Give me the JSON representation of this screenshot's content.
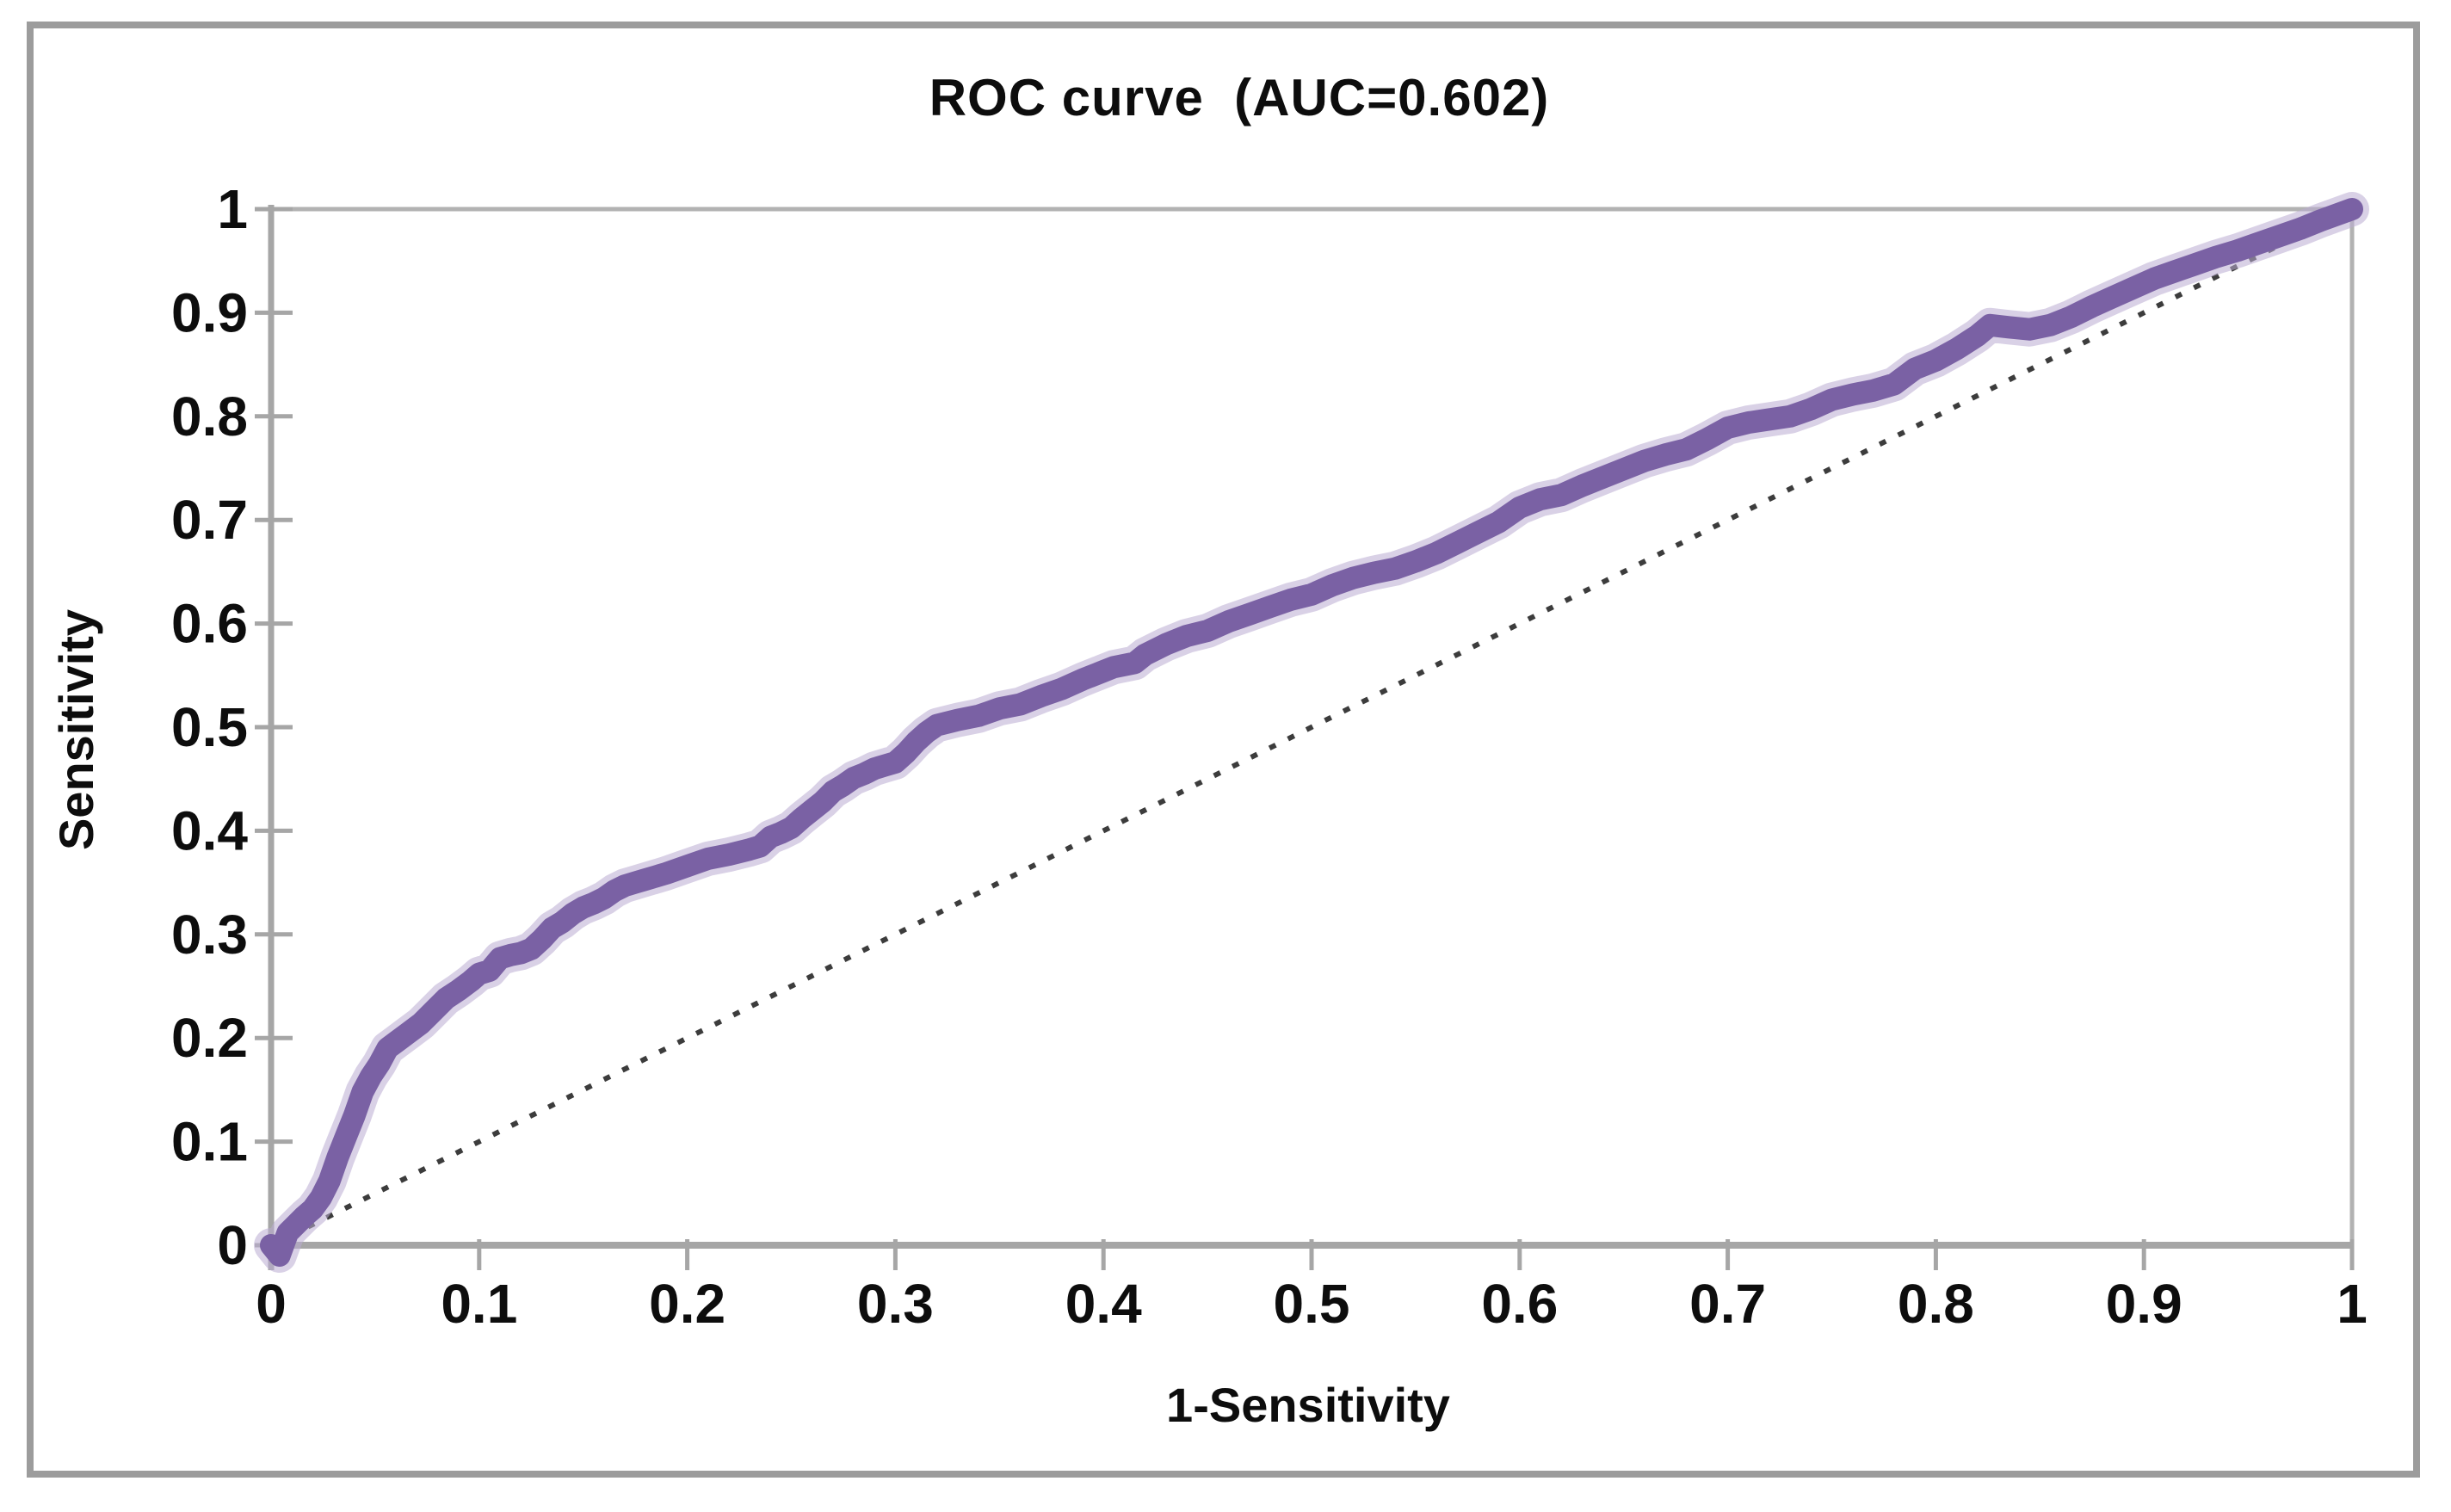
{
  "chart_data": {
    "type": "line",
    "title": "ROC curve  (AUC=0.602)",
    "xlabel": "1-Sensitivity",
    "ylabel": "Sensitivity",
    "auc": 0.602,
    "xlim": [
      0,
      1
    ],
    "ylim": [
      0,
      1
    ],
    "grid": false,
    "legend_position": "none",
    "x_tick_labels": [
      "0",
      "0.1",
      "0.2",
      "0.3",
      "0.4",
      "0.5",
      "0.6",
      "0.7",
      "0.8",
      "0.9",
      "1"
    ],
    "y_tick_labels": [
      "0",
      "0.1",
      "0.2",
      "0.3",
      "0.4",
      "0.5",
      "0.6",
      "0.7",
      "0.8",
      "0.9",
      "1"
    ],
    "series": [
      {
        "name": "ROC curve",
        "style": "solid-thick",
        "color": "#7a61a4",
        "halo_color": "#b9abd1",
        "points": [
          [
            0.0,
            0.0
          ],
          [
            0.004,
            -0.01
          ],
          [
            0.008,
            0.012
          ],
          [
            0.012,
            0.02
          ],
          [
            0.016,
            0.028
          ],
          [
            0.02,
            0.035
          ],
          [
            0.024,
            0.046
          ],
          [
            0.028,
            0.062
          ],
          [
            0.032,
            0.085
          ],
          [
            0.036,
            0.105
          ],
          [
            0.04,
            0.125
          ],
          [
            0.044,
            0.148
          ],
          [
            0.048,
            0.163
          ],
          [
            0.052,
            0.175
          ],
          [
            0.056,
            0.19
          ],
          [
            0.06,
            0.196
          ],
          [
            0.066,
            0.205
          ],
          [
            0.072,
            0.214
          ],
          [
            0.078,
            0.226
          ],
          [
            0.084,
            0.238
          ],
          [
            0.09,
            0.246
          ],
          [
            0.096,
            0.255
          ],
          [
            0.1,
            0.262
          ],
          [
            0.105,
            0.265
          ],
          [
            0.11,
            0.277
          ],
          [
            0.115,
            0.28
          ],
          [
            0.12,
            0.282
          ],
          [
            0.125,
            0.286
          ],
          [
            0.13,
            0.295
          ],
          [
            0.135,
            0.306
          ],
          [
            0.14,
            0.312
          ],
          [
            0.145,
            0.32
          ],
          [
            0.15,
            0.326
          ],
          [
            0.155,
            0.33
          ],
          [
            0.16,
            0.335
          ],
          [
            0.165,
            0.342
          ],
          [
            0.17,
            0.347
          ],
          [
            0.175,
            0.35
          ],
          [
            0.18,
            0.353
          ],
          [
            0.185,
            0.356
          ],
          [
            0.19,
            0.359
          ],
          [
            0.2,
            0.366
          ],
          [
            0.21,
            0.373
          ],
          [
            0.215,
            0.375
          ],
          [
            0.22,
            0.377
          ],
          [
            0.23,
            0.382
          ],
          [
            0.235,
            0.385
          ],
          [
            0.24,
            0.394
          ],
          [
            0.245,
            0.398
          ],
          [
            0.25,
            0.403
          ],
          [
            0.255,
            0.412
          ],
          [
            0.26,
            0.42
          ],
          [
            0.265,
            0.428
          ],
          [
            0.27,
            0.438
          ],
          [
            0.275,
            0.444
          ],
          [
            0.28,
            0.451
          ],
          [
            0.285,
            0.455
          ],
          [
            0.29,
            0.46
          ],
          [
            0.295,
            0.463
          ],
          [
            0.3,
            0.466
          ],
          [
            0.305,
            0.475
          ],
          [
            0.31,
            0.486
          ],
          [
            0.315,
            0.495
          ],
          [
            0.32,
            0.502
          ],
          [
            0.33,
            0.507
          ],
          [
            0.34,
            0.511
          ],
          [
            0.35,
            0.518
          ],
          [
            0.36,
            0.522
          ],
          [
            0.37,
            0.53
          ],
          [
            0.38,
            0.537
          ],
          [
            0.39,
            0.546
          ],
          [
            0.4,
            0.554
          ],
          [
            0.405,
            0.558
          ],
          [
            0.415,
            0.562
          ],
          [
            0.42,
            0.57
          ],
          [
            0.43,
            0.58
          ],
          [
            0.44,
            0.588
          ],
          [
            0.45,
            0.593
          ],
          [
            0.46,
            0.602
          ],
          [
            0.47,
            0.609
          ],
          [
            0.48,
            0.616
          ],
          [
            0.49,
            0.623
          ],
          [
            0.5,
            0.628
          ],
          [
            0.51,
            0.637
          ],
          [
            0.52,
            0.644
          ],
          [
            0.53,
            0.649
          ],
          [
            0.54,
            0.653
          ],
          [
            0.55,
            0.66
          ],
          [
            0.56,
            0.668
          ],
          [
            0.57,
            0.678
          ],
          [
            0.58,
            0.688
          ],
          [
            0.59,
            0.698
          ],
          [
            0.6,
            0.712
          ],
          [
            0.61,
            0.72
          ],
          [
            0.62,
            0.724
          ],
          [
            0.63,
            0.733
          ],
          [
            0.64,
            0.741
          ],
          [
            0.65,
            0.749
          ],
          [
            0.66,
            0.757
          ],
          [
            0.67,
            0.763
          ],
          [
            0.68,
            0.768
          ],
          [
            0.69,
            0.778
          ],
          [
            0.7,
            0.789
          ],
          [
            0.71,
            0.794
          ],
          [
            0.72,
            0.797
          ],
          [
            0.73,
            0.8
          ],
          [
            0.74,
            0.807
          ],
          [
            0.75,
            0.816
          ],
          [
            0.76,
            0.821
          ],
          [
            0.77,
            0.825
          ],
          [
            0.78,
            0.831
          ],
          [
            0.79,
            0.846
          ],
          [
            0.8,
            0.854
          ],
          [
            0.81,
            0.865
          ],
          [
            0.82,
            0.878
          ],
          [
            0.826,
            0.888
          ],
          [
            0.835,
            0.886
          ],
          [
            0.845,
            0.884
          ],
          [
            0.855,
            0.888
          ],
          [
            0.865,
            0.896
          ],
          [
            0.875,
            0.906
          ],
          [
            0.885,
            0.915
          ],
          [
            0.895,
            0.924
          ],
          [
            0.905,
            0.933
          ],
          [
            0.915,
            0.94
          ],
          [
            0.925,
            0.947
          ],
          [
            0.935,
            0.954
          ],
          [
            0.945,
            0.96
          ],
          [
            0.955,
            0.967
          ],
          [
            0.965,
            0.974
          ],
          [
            0.975,
            0.981
          ],
          [
            0.985,
            0.989
          ],
          [
            1.0,
            1.0
          ]
        ]
      },
      {
        "name": "chance diagonal",
        "style": "dashed-thin",
        "color": "#3c3c3c",
        "points": [
          [
            0,
            0
          ],
          [
            1,
            1
          ]
        ]
      }
    ]
  },
  "colors": {
    "axis": "#a6a6a6",
    "plot_border": "#b2b2b2",
    "outer_frame": "#9c9c9c",
    "text": "#0d0d0d",
    "curve": "#7a61a4",
    "curve_halo": "#b9abd1",
    "diagonal": "#3c3c3c",
    "background": "#ffffff"
  }
}
